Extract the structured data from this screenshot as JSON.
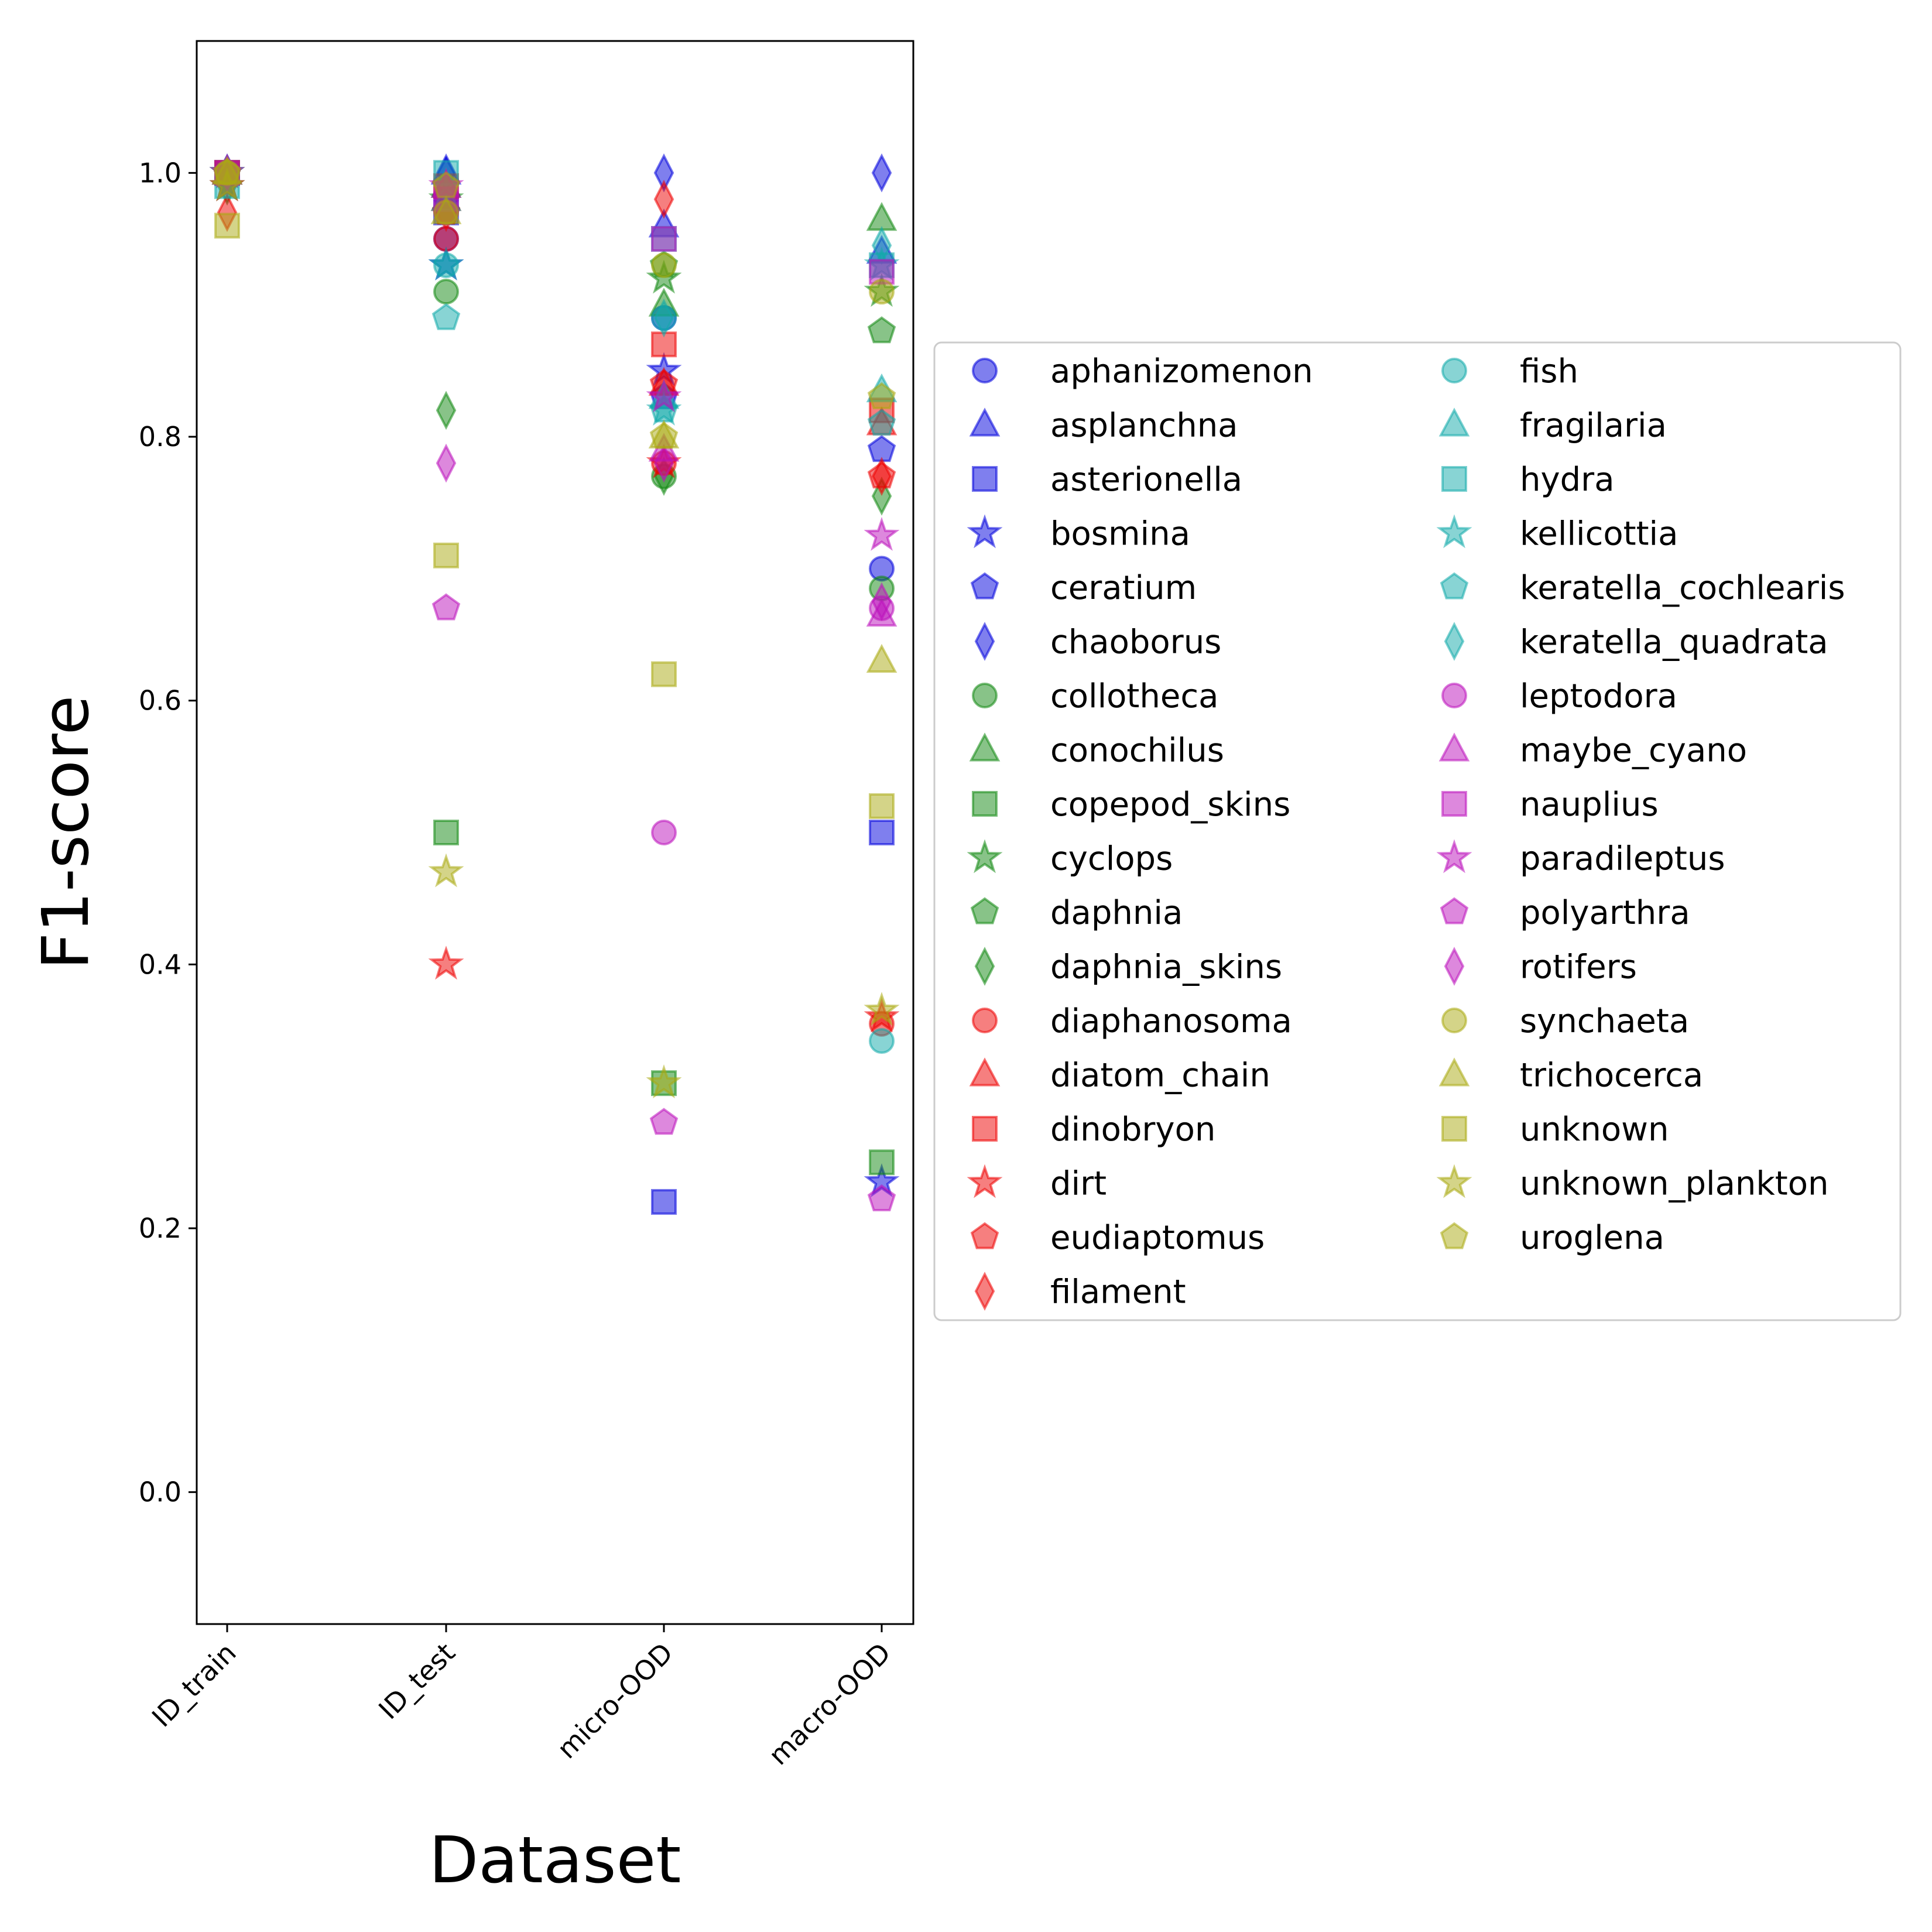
{
  "chart_data": {
    "type": "scatter",
    "title": "",
    "xlabel": "Dataset",
    "ylabel": "F1-score",
    "categories": [
      "ID_train",
      "ID_test",
      "micro-OOD",
      "macro-OOD"
    ],
    "ylim": [
      -0.1,
      1.1
    ],
    "yticks": [
      "0.0",
      "0.2",
      "0.4",
      "0.6",
      "0.8",
      "1.0"
    ],
    "grid": false,
    "legend_position": "center-right outside",
    "series": [
      {
        "name": "aphanizomenon",
        "color": "#0000dd",
        "marker": "circle",
        "values": [
          1.0,
          0.95,
          0.89,
          0.7
        ]
      },
      {
        "name": "asplanchna",
        "color": "#0000dd",
        "marker": "triangle",
        "values": [
          1.0,
          1.0,
          0.96,
          0.94
        ]
      },
      {
        "name": "asterionella",
        "color": "#0000dd",
        "marker": "square",
        "values": [
          1.0,
          0.97,
          0.22,
          0.5
        ]
      },
      {
        "name": "bosmina",
        "color": "#0000dd",
        "marker": "star",
        "values": [
          0.99,
          0.93,
          0.85,
          0.235
        ]
      },
      {
        "name": "ceratium",
        "color": "#0000dd",
        "marker": "pentagon",
        "values": [
          1.0,
          0.98,
          0.83,
          0.79
        ]
      },
      {
        "name": "chaoborus",
        "color": "#0000dd",
        "marker": "diamond",
        "values": [
          1.0,
          1.0,
          1.0,
          1.0
        ]
      },
      {
        "name": "collotheca",
        "color": "#118811",
        "marker": "circle",
        "values": [
          1.0,
          0.91,
          0.77,
          0.685
        ]
      },
      {
        "name": "conochilus",
        "color": "#118811",
        "marker": "triangle",
        "values": [
          1.0,
          0.99,
          0.9,
          0.965
        ]
      },
      {
        "name": "copepod_skins",
        "color": "#118811",
        "marker": "square",
        "values": [
          1.0,
          0.5,
          0.31,
          0.25
        ]
      },
      {
        "name": "cyclops",
        "color": "#118811",
        "marker": "star",
        "values": [
          1.0,
          0.98,
          0.92,
          0.91
        ]
      },
      {
        "name": "daphnia",
        "color": "#118811",
        "marker": "pentagon",
        "values": [
          1.0,
          0.97,
          0.93,
          0.88
        ]
      },
      {
        "name": "daphnia_skins",
        "color": "#118811",
        "marker": "diamond",
        "values": [
          0.99,
          0.82,
          0.77,
          0.755
        ]
      },
      {
        "name": "diaphanosoma",
        "color": "#ee0000",
        "marker": "circle",
        "values": [
          1.0,
          0.95,
          0.78,
          0.355
        ]
      },
      {
        "name": "diatom_chain",
        "color": "#ee0000",
        "marker": "triangle",
        "values": [
          1.0,
          0.98,
          0.84,
          0.81
        ]
      },
      {
        "name": "dinobryon",
        "color": "#ee0000",
        "marker": "square",
        "values": [
          1.0,
          0.99,
          0.87,
          0.82
        ]
      },
      {
        "name": "dirt",
        "color": "#ee0000",
        "marker": "star",
        "values": [
          0.99,
          0.4,
          0.78,
          0.36
        ]
      },
      {
        "name": "eudiaptomus",
        "color": "#ee0000",
        "marker": "pentagon",
        "values": [
          1.0,
          0.97,
          0.84,
          0.77
        ]
      },
      {
        "name": "filament",
        "color": "#ee0000",
        "marker": "diamond",
        "values": [
          0.97,
          0.97,
          0.98,
          0.77
        ]
      },
      {
        "name": "fish",
        "color": "#11aaaa",
        "marker": "circle",
        "values": [
          1.0,
          0.93,
          0.89,
          0.342
        ]
      },
      {
        "name": "fragilaria",
        "color": "#11aaaa",
        "marker": "triangle",
        "values": [
          1.0,
          0.98,
          0.83,
          0.835
        ]
      },
      {
        "name": "hydra",
        "color": "#11aaaa",
        "marker": "square",
        "values": [
          0.99,
          1.0,
          0.95,
          0.93
        ]
      },
      {
        "name": "kellicottia",
        "color": "#11aaaa",
        "marker": "star",
        "values": [
          1.0,
          0.93,
          0.82,
          0.93
        ]
      },
      {
        "name": "keratella_cochlearis",
        "color": "#11aaaa",
        "marker": "pentagon",
        "values": [
          1.0,
          0.89,
          0.82,
          0.81
        ]
      },
      {
        "name": "keratella_quadrata",
        "color": "#11aaaa",
        "marker": "diamond",
        "values": [
          1.0,
          0.99,
          0.89,
          0.945
        ]
      },
      {
        "name": "leptodora",
        "color": "#bb11bb",
        "marker": "circle",
        "values": [
          1.0,
          0.97,
          0.5,
          0.67
        ]
      },
      {
        "name": "maybe_cyano",
        "color": "#bb11bb",
        "marker": "triangle",
        "values": [
          1.0,
          0.99,
          0.79,
          0.665
        ]
      },
      {
        "name": "nauplius",
        "color": "#bb11bb",
        "marker": "square",
        "values": [
          1.0,
          0.98,
          0.95,
          0.925
        ]
      },
      {
        "name": "paradileptus",
        "color": "#bb11bb",
        "marker": "star",
        "values": [
          1.0,
          0.99,
          0.83,
          0.725
        ]
      },
      {
        "name": "polyarthra",
        "color": "#bb11bb",
        "marker": "pentagon",
        "values": [
          1.0,
          0.67,
          0.28,
          0.222
        ]
      },
      {
        "name": "rotifers",
        "color": "#bb11bb",
        "marker": "diamond",
        "values": [
          1.0,
          0.78,
          0.78,
          0.675
        ]
      },
      {
        "name": "synchaeta",
        "color": "#aaaa11",
        "marker": "circle",
        "values": [
          1.0,
          0.97,
          0.93,
          0.91
        ]
      },
      {
        "name": "trichocerca",
        "color": "#aaaa11",
        "marker": "triangle",
        "values": [
          1.0,
          0.97,
          0.8,
          0.63
        ]
      },
      {
        "name": "unknown",
        "color": "#aaaa11",
        "marker": "square",
        "values": [
          0.96,
          0.71,
          0.62,
          0.52
        ]
      },
      {
        "name": "unknown_plankton",
        "color": "#aaaa11",
        "marker": "star",
        "values": [
          0.99,
          0.47,
          0.31,
          0.365
        ]
      },
      {
        "name": "uroglena",
        "color": "#aaaa11",
        "marker": "pentagon",
        "values": [
          1.0,
          0.99,
          0.8,
          0.83
        ]
      }
    ]
  }
}
